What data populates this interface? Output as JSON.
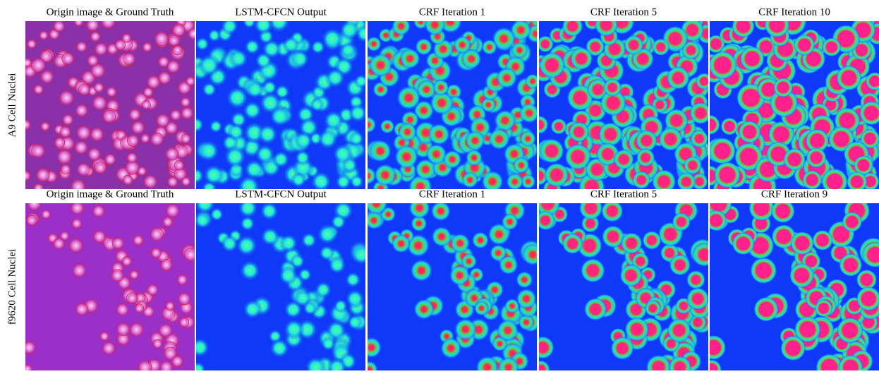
{
  "rows": [
    {
      "label": "A9 Cell Nuclei",
      "columns": [
        "Origin image & Ground Truth",
        "LSTM-CFCN Output",
        "CRF Iteration 1",
        "CRF Iteration 5",
        "CRF Iteration 10"
      ]
    },
    {
      "label": "f9620 Cell Nuclei",
      "columns": [
        "Origin image & Ground Truth",
        "LSTM-CFCN Output",
        "CRF Iteration 1",
        "CRF Iteration 5",
        "CRF Iteration 9"
      ]
    }
  ]
}
